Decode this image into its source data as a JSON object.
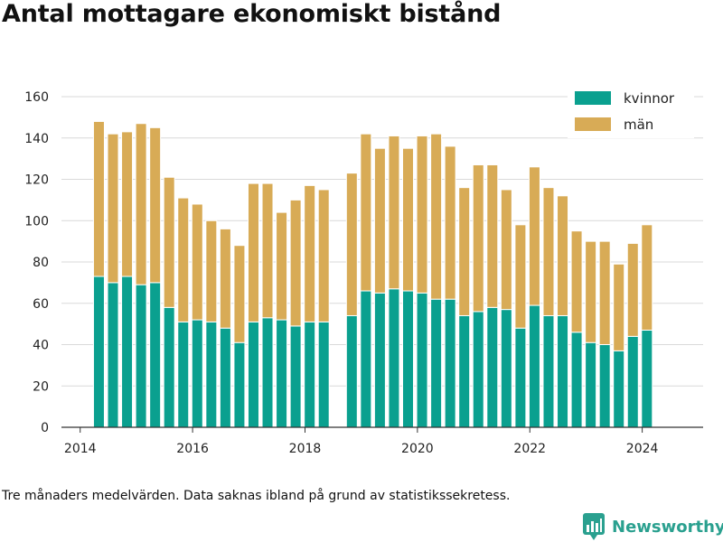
{
  "title": "Antal mottagare ekonomiskt bistånd",
  "footnote": "Tre månaders medelvärden. Data saknas ibland på grund av statistikssekretess.",
  "brand": {
    "name": "Newsworthy",
    "icon": "newsworthy-logo-icon",
    "color": "#2aa08f"
  },
  "chart_data": {
    "type": "bar",
    "stacked": true,
    "title": "Antal mottagare ekonomiskt bistånd",
    "xlabel": "",
    "ylabel": "",
    "xlim": [
      "2013-09",
      "2025-02"
    ],
    "ylim": [
      0,
      160
    ],
    "yticks": [
      0,
      20,
      40,
      60,
      80,
      100,
      120,
      140,
      160
    ],
    "xticks": [
      {
        "label": "2014",
        "date": "2014-01"
      },
      {
        "label": "2016",
        "date": "2016-01"
      },
      {
        "label": "2018",
        "date": "2018-01"
      },
      {
        "label": "2020",
        "date": "2020-01"
      },
      {
        "label": "2022",
        "date": "2022-01"
      },
      {
        "label": "2024",
        "date": "2024-01"
      }
    ],
    "grid": true,
    "legend_position": "top-right",
    "x": [
      "2014-05",
      "2014-08",
      "2014-11",
      "2015-02",
      "2015-05",
      "2015-08",
      "2015-11",
      "2016-02",
      "2016-05",
      "2016-08",
      "2016-11",
      "2017-02",
      "2017-05",
      "2017-08",
      "2017-11",
      "2018-02",
      "2018-05",
      "2018-11",
      "2019-02",
      "2019-05",
      "2019-08",
      "2019-11",
      "2020-02",
      "2020-05",
      "2020-08",
      "2020-11",
      "2021-02",
      "2021-05",
      "2021-08",
      "2021-11",
      "2022-02",
      "2022-05",
      "2022-08",
      "2022-11",
      "2023-02",
      "2023-05",
      "2023-08",
      "2023-11",
      "2024-02"
    ],
    "series": [
      {
        "name": "kvinnor",
        "color": "#0aa08f",
        "values": [
          73,
          70,
          73,
          69,
          70,
          58,
          51,
          52,
          51,
          48,
          41,
          51,
          53,
          52,
          49,
          51,
          51,
          54,
          66,
          65,
          67,
          66,
          65,
          62,
          62,
          54,
          56,
          58,
          57,
          48,
          59,
          54,
          54,
          46,
          41,
          40,
          37,
          44,
          47
        ]
      },
      {
        "name": "män",
        "color": "#d8ab56",
        "values": [
          75,
          72,
          70,
          78,
          75,
          63,
          60,
          56,
          49,
          48,
          47,
          67,
          65,
          52,
          61,
          66,
          64,
          69,
          76,
          70,
          74,
          69,
          76,
          80,
          74,
          62,
          71,
          69,
          58,
          50,
          67,
          62,
          58,
          49,
          49,
          50,
          42,
          45,
          51
        ]
      }
    ]
  }
}
